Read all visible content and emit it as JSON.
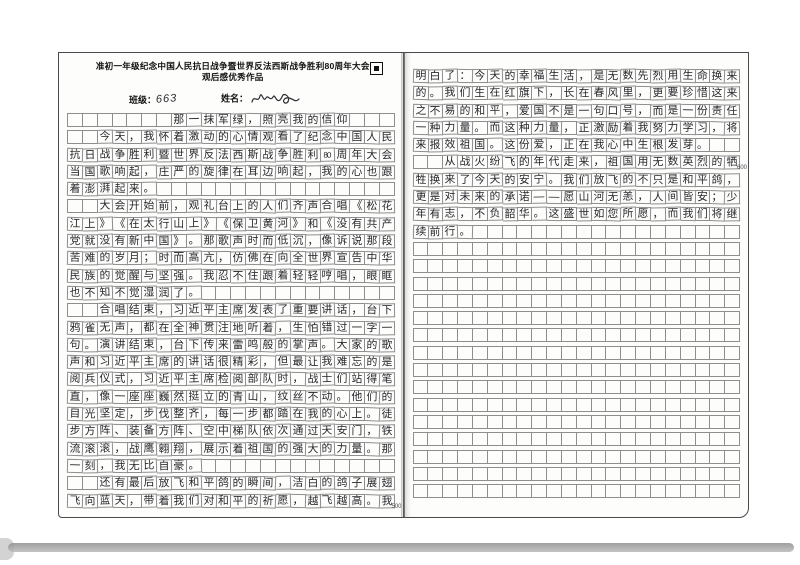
{
  "header": {
    "title_line1": "准初一年级纪念中国人民抗日战争暨世界反法西斯战争胜利80周年大会",
    "title_line2": "观后感优秀作品",
    "class_label": "班级：",
    "class_value": "663",
    "name_label": "姓名：",
    "registration_mark_icon": "filled-square-in-box"
  },
  "colors": {
    "ink": "#26262b",
    "grid_line": "#8e8e8e",
    "printed_text": "#111111",
    "scan_shadow": "#9a9a9a"
  },
  "layout": {
    "columns": 22
  },
  "essay": {
    "title": "那一抹军绿，照亮我的信仰",
    "pages": [
      {
        "side": "left",
        "row_count": 23,
        "marker": {
          "row": 23,
          "text": "500"
        },
        "rows": [
          "       那一抹军绿，照亮我的信仰",
          "  今天，我怀着激动的心情观看了纪念中国人民",
          "抗日战争胜利暨世界反法西斯战争胜利80周年大会",
          "当国歌响起，庄严的旋律在耳边响起，我的心也跟",
          "着澎湃起来。",
          "  大会开始前，观礼台上的人们齐声合唱《松花",
          "江上》《在太行山上》《保卫黄河》和《没有共产",
          "党就没有新中国》。那歌声时而低沉，像诉说那段",
          "苦难的岁月；时而高亢，仿佛在向全世界宣告中华",
          "民族的觉醒与坚强。我忍不住跟着轻轻哼唱，眼眶",
          "也不知不觉湿润了。",
          "  合唱结束，习近平主席发表了重要讲话，台下",
          "鸦雀无声，都在全神贯注地听着，生怕错过一字一",
          "句。演讲结束，台下传来雷鸣般的掌声。大家的歌",
          "声和习近平主席的讲话很精彩，但最让我难忘的是",
          "阅兵仪式，习近平主席检阅部队时，战士们站得笔",
          "直，像一座座巍然挺立的青山，纹丝不动。他们的",
          "目光坚定，步伐整齐，每一步都踏在我的心上。徒",
          "步方阵、装备方阵、空中梯队依次通过天安门，铁",
          "流滚滚，战鹰翱翔，展示着祖国的强大的力量。那",
          "一刻，我无比自豪。",
          "  还有最后放飞和平鸽的瞬间，洁白的鸽子展翅",
          "飞向蓝天，带着我们对和平的祈愿，越飞越高。我"
        ]
      },
      {
        "side": "right",
        "row_count": 25,
        "marker": {
          "row": 6,
          "text": "600"
        },
        "rows": [
          "明白了：今天的幸福生活，是无数先烈用生命换来",
          "的。我们生在红旗下，长在春风里，更要珍惜这来",
          "之不易的和平，爱国不是一句口号，而是一份责任",
          "一种力量。而这种力量，正激励着我努力学习，将",
          "来报效祖国。这份爱，正在我心中生根发芽。",
          "  从战火纷飞的年代走来，祖国用无数英烈的牺",
          "牲换来了今天的安宁。我们放飞的不只是和平鸽，",
          "更是对未来的承诺——愿山河无恙，人间皆安；少",
          "年有志，不负韶华。这盛世如您所愿，而我们将继",
          "续前行。"
        ]
      }
    ]
  }
}
